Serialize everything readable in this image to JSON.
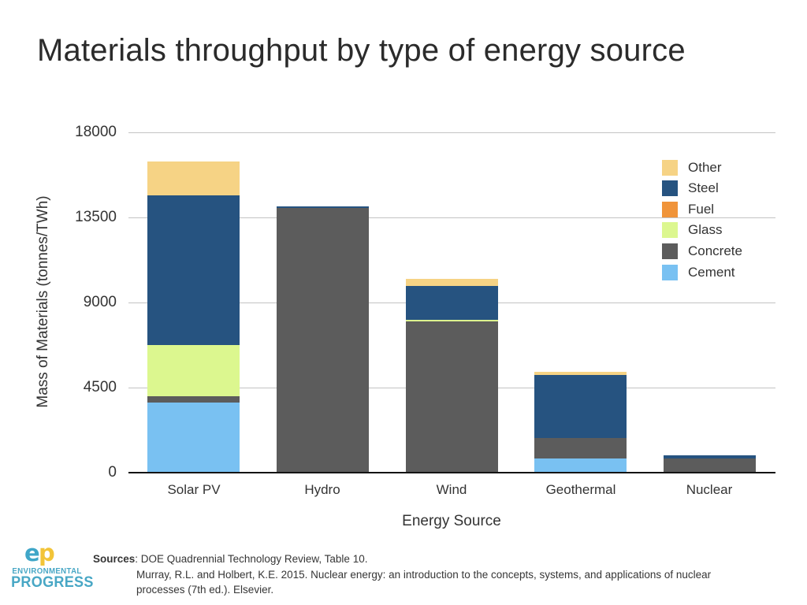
{
  "title": "Materials throughput by type of energy source",
  "chart_data": {
    "type": "bar",
    "stacked": true,
    "title": "Materials throughput by type of energy source",
    "xlabel": "Energy Source",
    "ylabel": "Mass of Materials (tonnes/TWh)",
    "ylim": [
      0,
      18000
    ],
    "yticks": [
      0,
      4500,
      9000,
      13500,
      18000
    ],
    "grid": true,
    "legend_position": "top-right",
    "categories": [
      "Solar PV",
      "Hydro",
      "Wind",
      "Geothermal",
      "Nuclear"
    ],
    "series": [
      {
        "name": "Cement",
        "color": "#79C1F2",
        "values": [
          3700,
          0,
          0,
          750,
          0
        ]
      },
      {
        "name": "Concrete",
        "color": "#5C5C5C",
        "values": [
          350,
          14000,
          8000,
          1100,
          760
        ]
      },
      {
        "name": "Glass",
        "color": "#DCF78F",
        "values": [
          2700,
          0,
          92,
          0,
          0
        ]
      },
      {
        "name": "Fuel",
        "color": "#F0943A",
        "values": [
          0,
          0,
          0,
          0,
          0
        ]
      },
      {
        "name": "Steel",
        "color": "#265380",
        "values": [
          7900,
          67,
          1800,
          3300,
          160
        ]
      },
      {
        "name": "Other",
        "color": "#F6D385",
        "values": [
          1800,
          0,
          368,
          200,
          0
        ]
      }
    ],
    "totals": [
      16450,
      14067,
      10260,
      5350,
      920
    ],
    "legend_order_top_to_bottom": [
      "Other",
      "Steel",
      "Fuel",
      "Glass",
      "Concrete",
      "Cement"
    ]
  },
  "footer": {
    "logo_e": "e",
    "logo_p": "p",
    "logo_line1": "ENVIRONMENTAL",
    "logo_line2": "PROGRESS",
    "sources_label": "Sources",
    "sources_rest": ": DOE Quadrennial Technology Review, Table 10.",
    "sources_line2": "Murray, R.L. and Holbert, K.E. 2015. Nuclear energy: an introduction to the concepts, systems, and applications of nuclear",
    "sources_line3": "processes (7th ed.). Elsevier."
  },
  "colors": {
    "background": "#FFFFFF",
    "gridline": "#C3C3C3",
    "axis_line": "#141414",
    "text": "#333333",
    "logo_teal": "#48A7C5",
    "logo_yellow": "#F2C438"
  }
}
